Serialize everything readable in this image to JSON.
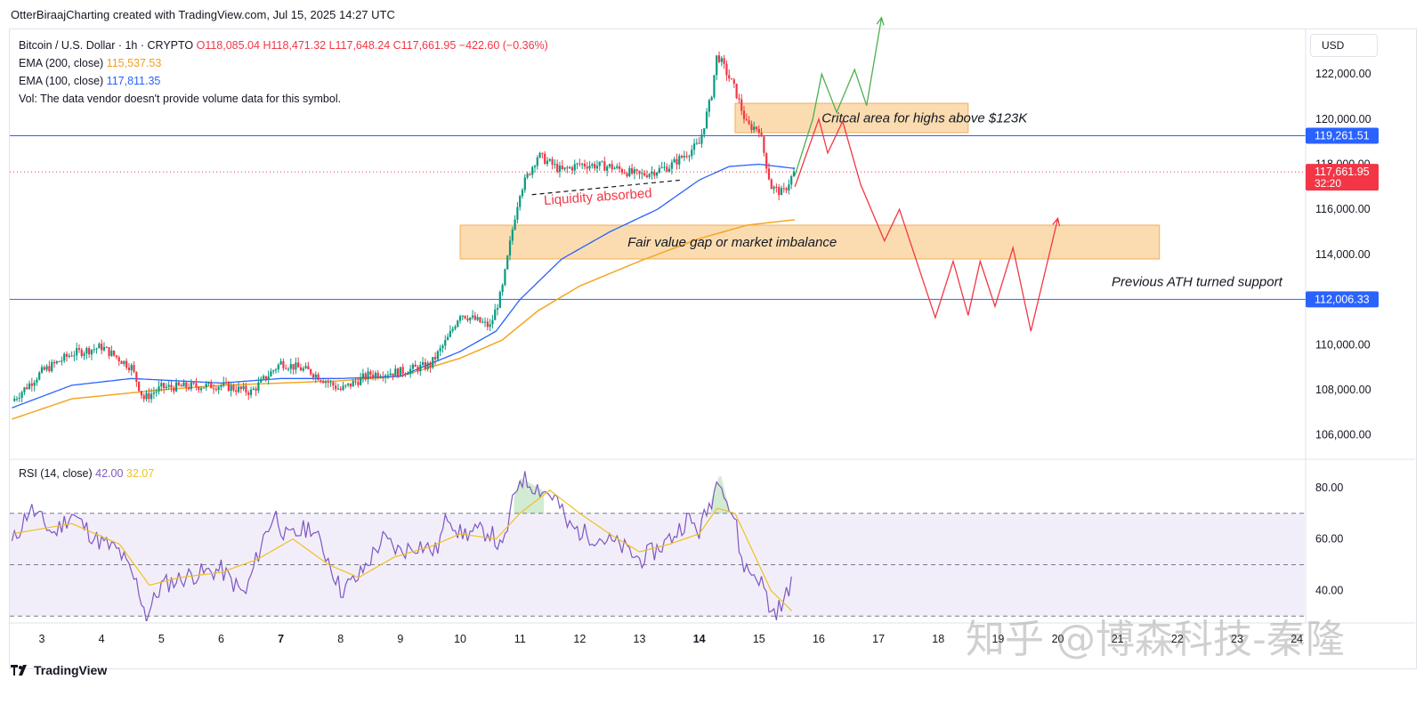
{
  "header": {
    "credit": "OtterBiraajCharting created with TradingView.com, Jul 15, 2025 14:27 UTC"
  },
  "legend": {
    "symbol": "Bitcoin / U.S. Dollar · 1h · CRYPTO",
    "ohlc": "O118,085.04 H118,471.32 L117,648.24 C117,661.95 −422.60 (−0.36%)",
    "ema200_label": "EMA (200, close)",
    "ema200_value": "115,537.53",
    "ema100_label": "EMA (100, close)",
    "ema100_value": "117,811.35",
    "vol_note": "Vol: The data vendor doesn't provide volume data for this symbol."
  },
  "currency_button": "USD",
  "rsi_legend": {
    "label": "RSI (14, close)",
    "value1": "42.00",
    "value2": "32.07"
  },
  "footer": {
    "brand": "TradingView"
  },
  "watermark": "知乎 @博森科技-秦隆",
  "colors": {
    "up": "#089981",
    "down": "#f23645",
    "ema100": "#2962ff",
    "ema200": "#f5a623",
    "rsi": "#7e57c2",
    "rsi_ma": "#f0c020",
    "zone_fill": "#fbd9a8",
    "zone_border": "#f0a64a",
    "bull_path": "#4caf50",
    "bear_path": "#f23645"
  },
  "chart_data": [
    {
      "type": "candlestick",
      "title": "Bitcoin / U.S. Dollar · 1h · CRYPTO",
      "x_ticks": [
        "3",
        "4",
        "5",
        "6",
        "7",
        "8",
        "9",
        "10",
        "11",
        "12",
        "13",
        "14",
        "15",
        "16",
        "17",
        "18",
        "19",
        "20",
        "21",
        "22",
        "23",
        "24"
      ],
      "y_ticks": [
        "106,000.00",
        "108,000.00",
        "110,000.00",
        "112,000.00",
        "114,000.00",
        "116,000.00",
        "118,000.00",
        "120,000.00",
        "122,000.00"
      ],
      "ylim": [
        105000,
        123900
      ],
      "price_labels": [
        {
          "text": "119,261.51",
          "value": 119261.51,
          "color": "#2962ff"
        },
        {
          "text": "117,661.95",
          "value": 117661.95,
          "color": "#f23645",
          "sub": "32:20"
        },
        {
          "text": "112,006.33",
          "value": 112006.33,
          "color": "#2962ff"
        }
      ],
      "horizontal_lines": [
        119261.51,
        112006.33
      ],
      "zones": [
        {
          "label": "Critcal area for highs above $123K",
          "x_range": [
            14.6,
            18.5
          ],
          "y_range": [
            119400,
            120700
          ]
        },
        {
          "label": "Fair value gap or market imbalance",
          "x_range": [
            10.0,
            21.7
          ],
          "y_range": [
            113800,
            115300
          ]
        }
      ],
      "annotations": [
        "Liquidity absorbed",
        "Previous ATH turned support"
      ],
      "close_series_keypoints": [
        [
          2.5,
          107500
        ],
        [
          3.0,
          108800
        ],
        [
          3.5,
          109600
        ],
        [
          4.0,
          109900
        ],
        [
          4.5,
          109000
        ],
        [
          4.7,
          107600
        ],
        [
          5.0,
          108100
        ],
        [
          6.0,
          108200
        ],
        [
          6.5,
          107900
        ],
        [
          7.0,
          109200
        ],
        [
          7.5,
          108800
        ],
        [
          8.0,
          108000
        ],
        [
          8.5,
          108700
        ],
        [
          9.0,
          108800
        ],
        [
          9.5,
          109100
        ],
        [
          9.8,
          110300
        ],
        [
          10.0,
          111400
        ],
        [
          10.5,
          110800
        ],
        [
          10.7,
          112400
        ],
        [
          10.9,
          115500
        ],
        [
          11.0,
          116800
        ],
        [
          11.3,
          118400
        ],
        [
          11.7,
          117700
        ],
        [
          12.0,
          118000
        ],
        [
          12.5,
          117900
        ],
        [
          13.0,
          117500
        ],
        [
          13.5,
          117900
        ],
        [
          14.0,
          118900
        ],
        [
          14.2,
          121000
        ],
        [
          14.3,
          122900
        ],
        [
          14.6,
          121300
        ],
        [
          14.8,
          119700
        ],
        [
          15.0,
          119600
        ],
        [
          15.2,
          117000
        ],
        [
          15.4,
          116700
        ],
        [
          15.6,
          117700
        ]
      ],
      "series": [
        {
          "name": "EMA (200, close)",
          "keypoints": [
            [
              2.5,
              106700
            ],
            [
              3.5,
              107600
            ],
            [
              5.0,
              108000
            ],
            [
              6.0,
              108200
            ],
            [
              7.0,
              108300
            ],
            [
              8.0,
              108400
            ],
            [
              9.0,
              108600
            ],
            [
              10.0,
              109400
            ],
            [
              10.7,
              110200
            ],
            [
              11.3,
              111500
            ],
            [
              12.0,
              112600
            ],
            [
              13.0,
              113700
            ],
            [
              14.0,
              114700
            ],
            [
              14.8,
              115300
            ],
            [
              15.6,
              115540
            ]
          ]
        },
        {
          "name": "EMA (100, close)",
          "keypoints": [
            [
              2.5,
              107200
            ],
            [
              3.5,
              108200
            ],
            [
              4.5,
              108500
            ],
            [
              6.0,
              108300
            ],
            [
              7.0,
              108500
            ],
            [
              8.0,
              108500
            ],
            [
              9.0,
              108600
            ],
            [
              10.0,
              109700
            ],
            [
              10.6,
              110600
            ],
            [
              11.0,
              112000
            ],
            [
              11.7,
              113800
            ],
            [
              12.5,
              115000
            ],
            [
              13.3,
              116000
            ],
            [
              14.0,
              117300
            ],
            [
              14.5,
              117900
            ],
            [
              15.0,
              118000
            ],
            [
              15.6,
              117811
            ]
          ]
        }
      ],
      "projection_paths": [
        {
          "name": "bullish",
          "points": [
            [
              15.6,
              117500
            ],
            [
              15.9,
              120000
            ],
            [
              16.05,
              122000
            ],
            [
              16.3,
              120300
            ],
            [
              16.6,
              122200
            ],
            [
              16.8,
              120600
            ],
            [
              17.05,
              124500
            ]
          ]
        },
        {
          "name": "bearish",
          "points": [
            [
              15.6,
              117000
            ],
            [
              16.0,
              120000
            ],
            [
              16.15,
              118500
            ],
            [
              16.4,
              119900
            ],
            [
              16.7,
              117100
            ],
            [
              17.1,
              114600
            ],
            [
              17.35,
              116000
            ],
            [
              17.7,
              113200
            ],
            [
              17.95,
              111200
            ],
            [
              18.25,
              113700
            ],
            [
              18.5,
              111300
            ],
            [
              18.7,
              113700
            ],
            [
              18.95,
              111700
            ],
            [
              19.25,
              114300
            ],
            [
              19.55,
              110600
            ],
            [
              20.0,
              115600
            ]
          ]
        }
      ]
    },
    {
      "type": "line",
      "title": "RSI (14, close)",
      "ylim": [
        28,
        90
      ],
      "y_ticks": [
        "40.00",
        "60.00",
        "80.00"
      ],
      "bands": [
        70,
        50,
        30
      ],
      "series": [
        {
          "name": "RSI",
          "keypoints": [
            [
              2.5,
              58
            ],
            [
              2.8,
              72
            ],
            [
              3.2,
              62
            ],
            [
              3.5,
              70
            ],
            [
              3.9,
              60
            ],
            [
              4.3,
              55
            ],
            [
              4.6,
              42
            ],
            [
              4.75,
              30
            ],
            [
              5.0,
              42
            ],
            [
              5.5,
              46
            ],
            [
              6.0,
              48
            ],
            [
              6.4,
              38
            ],
            [
              6.7,
              60
            ],
            [
              6.9,
              70
            ],
            [
              7.1,
              60
            ],
            [
              7.5,
              65
            ],
            [
              7.8,
              52
            ],
            [
              8.0,
              40
            ],
            [
              8.3,
              45
            ],
            [
              8.7,
              60
            ],
            [
              9.0,
              55
            ],
            [
              9.3,
              58
            ],
            [
              9.6,
              55
            ],
            [
              9.8,
              70
            ],
            [
              10.0,
              62
            ],
            [
              10.5,
              63
            ],
            [
              10.7,
              55
            ],
            [
              10.9,
              76
            ],
            [
              11.0,
              84
            ],
            [
              11.3,
              80
            ],
            [
              11.6,
              76
            ],
            [
              11.8,
              65
            ],
            [
              12.1,
              62
            ],
            [
              12.4,
              60
            ],
            [
              12.7,
              57
            ],
            [
              13.0,
              52
            ],
            [
              13.3,
              56
            ],
            [
              13.6,
              62
            ],
            [
              13.8,
              68
            ],
            [
              14.0,
              63
            ],
            [
              14.2,
              75
            ],
            [
              14.35,
              86
            ],
            [
              14.5,
              72
            ],
            [
              14.6,
              68
            ],
            [
              14.7,
              52
            ],
            [
              14.8,
              48
            ],
            [
              15.0,
              45
            ],
            [
              15.1,
              40
            ],
            [
              15.2,
              31
            ],
            [
              15.4,
              34
            ],
            [
              15.55,
              45
            ]
          ]
        },
        {
          "name": "RSI MA",
          "keypoints": [
            [
              2.5,
              62
            ],
            [
              3.5,
              66
            ],
            [
              4.3,
              58
            ],
            [
              4.8,
              42
            ],
            [
              5.3,
              45
            ],
            [
              6.0,
              47
            ],
            [
              6.6,
              52
            ],
            [
              7.2,
              60
            ],
            [
              7.8,
              50
            ],
            [
              8.3,
              45
            ],
            [
              8.9,
              53
            ],
            [
              9.5,
              57
            ],
            [
              10.0,
              62
            ],
            [
              10.6,
              60
            ],
            [
              11.0,
              70
            ],
            [
              11.5,
              79
            ],
            [
              12.0,
              70
            ],
            [
              12.5,
              62
            ],
            [
              13.0,
              55
            ],
            [
              13.5,
              58
            ],
            [
              14.0,
              62
            ],
            [
              14.3,
              72
            ],
            [
              14.6,
              70
            ],
            [
              14.9,
              55
            ],
            [
              15.2,
              40
            ],
            [
              15.55,
              32
            ]
          ]
        }
      ]
    }
  ]
}
